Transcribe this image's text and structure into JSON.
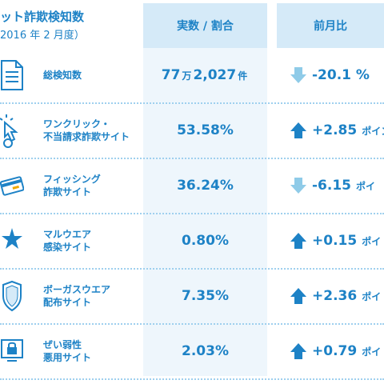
{
  "header": {
    "title_line1": "ット詐欺検知数",
    "title_line2": "2016 年 2 月度）",
    "col_ratio": "実数 / 割合",
    "col_change": "前月比"
  },
  "colors": {
    "text": "#1d82c6",
    "header_bg": "#d5eaf8",
    "up_arrow": "#1d82c6",
    "down_arrow": "#8fcbe8"
  },
  "rows": [
    {
      "icon": "document-list-icon",
      "label1": "総検知数",
      "label2": "",
      "value_a": "77",
      "value_unit1": "万",
      "value_b": "2,027",
      "value_unit2": "件",
      "direction": "down",
      "change": "-20.1 %",
      "change_unit": ""
    },
    {
      "icon": "cursor-click-icon",
      "label1": "ワンクリック・",
      "label2": "不当請求詐欺サイト",
      "value": "53.58%",
      "direction": "up",
      "change": "+2.85",
      "change_unit": "ポイン"
    },
    {
      "icon": "credit-card-hook-icon",
      "label1": "フィッシング",
      "label2": "詐欺サイト",
      "value": "36.24%",
      "direction": "down",
      "change": "-6.15",
      "change_unit": "ポイ"
    },
    {
      "icon": "malware-star-icon",
      "label1": "マルウエア",
      "label2": "感染サイト",
      "value": "0.80%",
      "direction": "up",
      "change": "+0.15",
      "change_unit": "ポイ"
    },
    {
      "icon": "shield-icon",
      "label1": "ボーガスウエア",
      "label2": "配布サイト",
      "value": "7.35%",
      "direction": "up",
      "change": "+2.36",
      "change_unit": "ポイ"
    },
    {
      "icon": "monitor-lock-icon",
      "label1": "ぜい弱性",
      "label2": "悪用サイト",
      "value": "2.03%",
      "direction": "up",
      "change": "+0.79",
      "change_unit": "ポイ"
    }
  ]
}
